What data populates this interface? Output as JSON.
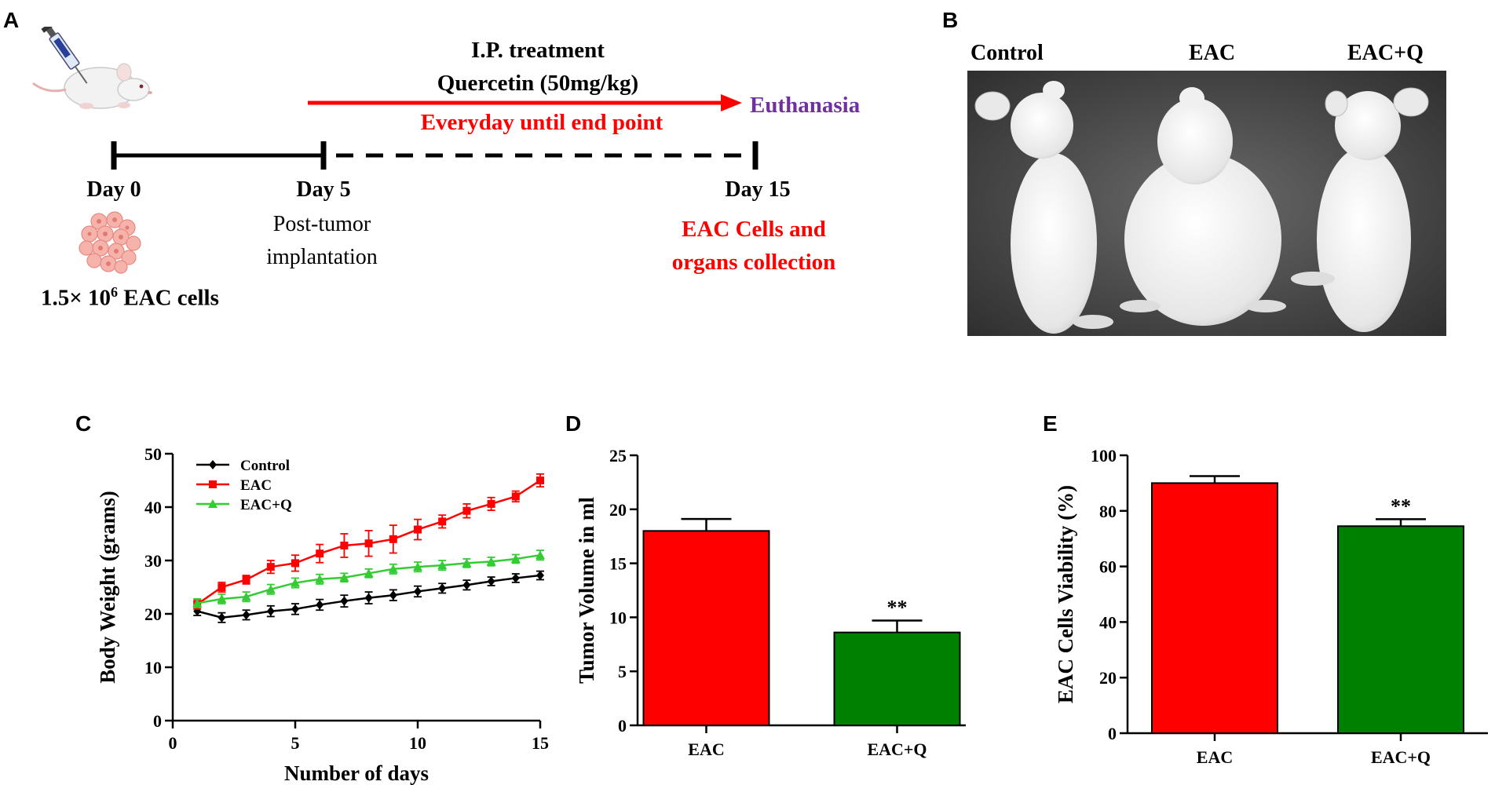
{
  "colors": {
    "red": "#ff0000",
    "green": "#008000",
    "black": "#000000",
    "purple": "#7030a0",
    "eq": "#33cc33"
  },
  "panelA": {
    "letter": "A",
    "title_line1": "I.P. treatment",
    "title_line2": "Quercetin (50mg/kg)",
    "red_line": "Everyday until end point",
    "euthanasia": "Euthanasia",
    "day0": "Day 0",
    "day5": "Day 5",
    "day15": "Day 15",
    "post1": "Post-tumor",
    "post2": "implantation",
    "collect1": "EAC Cells and",
    "collect2": "organs collection",
    "cells_prefix": "1.5× 10",
    "cells_exp": "6",
    "cells_suffix": " EAC cells",
    "mouse_icon": "mouse-injection-icon",
    "cells_icon": "cell-cluster-icon"
  },
  "panelB": {
    "letter": "B",
    "labels": [
      "Control",
      "EAC",
      "EAC+Q"
    ]
  },
  "chart_data": [
    {
      "id": "C",
      "type": "line",
      "panel_letter": "C",
      "xlabel": "Number of days",
      "ylabel": "Body Weight (grams)",
      "xlim": [
        0,
        15
      ],
      "ylim": [
        0,
        50
      ],
      "xticks": [
        0,
        5,
        10,
        15
      ],
      "yticks": [
        0,
        10,
        20,
        30,
        40,
        50
      ],
      "legend_position": "top-left",
      "x": [
        1,
        2,
        3,
        4,
        5,
        6,
        7,
        8,
        9,
        10,
        11,
        12,
        13,
        14,
        15
      ],
      "series": [
        {
          "name": "Control",
          "color": "#000000",
          "marker": "diamond",
          "values": [
            20.5,
            19.3,
            19.8,
            20.5,
            20.9,
            21.7,
            22.4,
            23.0,
            23.5,
            24.2,
            24.8,
            25.4,
            26.1,
            26.7,
            27.2
          ],
          "errors": [
            0.8,
            0.9,
            0.9,
            1.0,
            1.0,
            1.0,
            1.1,
            1.1,
            1.0,
            1.0,
            0.9,
            0.9,
            0.8,
            0.8,
            0.8
          ]
        },
        {
          "name": "EAC",
          "color": "#ff0000",
          "marker": "square",
          "values": [
            21.8,
            25.0,
            26.4,
            28.8,
            29.5,
            31.3,
            32.8,
            33.2,
            34.0,
            35.8,
            37.3,
            39.3,
            40.6,
            42.0,
            45.0
          ],
          "errors": [
            0.9,
            0.9,
            0.8,
            1.2,
            1.5,
            1.7,
            2.2,
            2.4,
            2.6,
            1.9,
            1.2,
            1.3,
            1.2,
            1.0,
            1.2
          ]
        },
        {
          "name": "EAC+Q",
          "color": "#33cc33",
          "marker": "triangle",
          "values": [
            22.0,
            22.8,
            23.2,
            24.6,
            25.8,
            26.5,
            26.8,
            27.6,
            28.4,
            28.8,
            29.1,
            29.5,
            29.8,
            30.3,
            31.0
          ],
          "errors": [
            0.8,
            0.9,
            0.9,
            0.9,
            0.9,
            0.9,
            0.8,
            0.8,
            0.9,
            0.9,
            0.9,
            0.8,
            0.8,
            0.8,
            0.9
          ]
        }
      ]
    },
    {
      "id": "D",
      "type": "bar",
      "panel_letter": "D",
      "xlabel": "",
      "ylabel": "Tumor Volume in ml",
      "ylim": [
        0,
        25
      ],
      "yticks": [
        0,
        5,
        10,
        15,
        20,
        25
      ],
      "categories": [
        "EAC",
        "EAC+Q"
      ],
      "values": [
        18.0,
        8.6
      ],
      "errors": [
        1.1,
        1.1
      ],
      "colors": [
        "#ff0000",
        "#008000"
      ],
      "annotations": [
        "",
        "**"
      ]
    },
    {
      "id": "E",
      "type": "bar",
      "panel_letter": "E",
      "xlabel": "",
      "ylabel": "EAC Cells Viability (%)",
      "ylim": [
        0,
        100
      ],
      "yticks": [
        0,
        20,
        40,
        60,
        80,
        100
      ],
      "categories": [
        "EAC",
        "EAC+Q"
      ],
      "values": [
        90,
        74.5
      ],
      "errors": [
        2.5,
        2.5
      ],
      "colors": [
        "#ff0000",
        "#008000"
      ],
      "annotations": [
        "",
        "**"
      ]
    }
  ]
}
